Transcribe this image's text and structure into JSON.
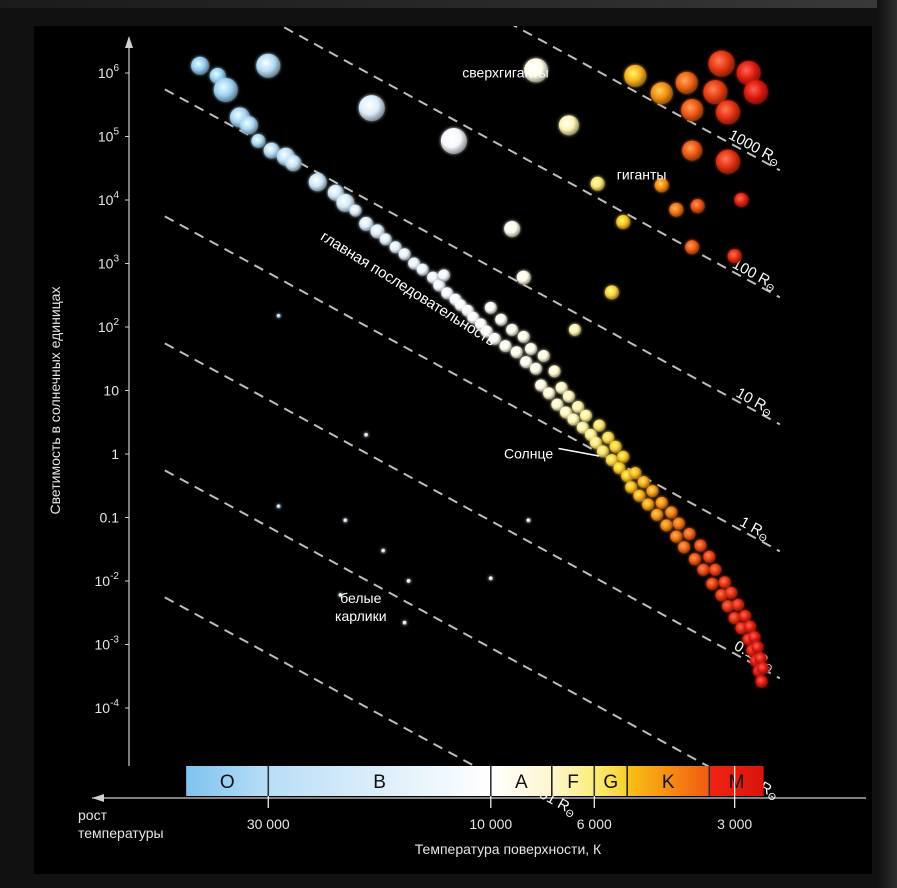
{
  "chart_data": {
    "type": "scatter",
    "title": "",
    "xlabel": "Температура поверхности, К",
    "ylabel": "Светимость в солнечных единицах",
    "x_scale": "log-reversed",
    "y_scale": "log",
    "xlim": [
      45000,
      2600
    ],
    "ylim": [
      5e-05,
      2000000
    ],
    "grid": false,
    "arrow_label": "рост\nтемпературы",
    "x_ticks": [
      {
        "value": 30000,
        "label": "30 000"
      },
      {
        "value": 10000,
        "label": "10 000"
      },
      {
        "value": 6000,
        "label": "6 000"
      },
      {
        "value": 3000,
        "label": "3 000"
      }
    ],
    "y_ticks": [
      {
        "value": 1000000,
        "base": "10",
        "exp": "6",
        "label": ""
      },
      {
        "value": 100000,
        "base": "10",
        "exp": "5",
        "label": ""
      },
      {
        "value": 10000,
        "base": "10",
        "exp": "4",
        "label": ""
      },
      {
        "value": 1000,
        "base": "10",
        "exp": "3",
        "label": ""
      },
      {
        "value": 100,
        "base": "10",
        "exp": "2",
        "label": ""
      },
      {
        "value": 10,
        "base": "",
        "exp": "",
        "label": "10"
      },
      {
        "value": 1,
        "base": "",
        "exp": "",
        "label": "1"
      },
      {
        "value": 0.1,
        "base": "",
        "exp": "",
        "label": "0.1"
      },
      {
        "value": 0.01,
        "base": "10",
        "exp": "-2",
        "label": ""
      },
      {
        "value": 0.001,
        "base": "10",
        "exp": "-3",
        "label": ""
      },
      {
        "value": 0.0001,
        "base": "10",
        "exp": "-4",
        "label": ""
      }
    ],
    "spectral_classes": [
      {
        "label": "O",
        "t_from": 45000,
        "t_to": 30000,
        "color_a": "#7ec3ee",
        "color_b": "#b9def6"
      },
      {
        "label": "B",
        "t_from": 30000,
        "t_to": 10000,
        "color_a": "#b9def6",
        "color_b": "#ffffff"
      },
      {
        "label": "A",
        "t_from": 10000,
        "t_to": 7400,
        "color_a": "#ffffff",
        "color_b": "#fdf6cf"
      },
      {
        "label": "F",
        "t_from": 7400,
        "t_to": 6000,
        "color_a": "#fdf6cf",
        "color_b": "#fbee7a"
      },
      {
        "label": "G",
        "t_from": 6000,
        "t_to": 5100,
        "color_a": "#fbee7a",
        "color_b": "#f6d02a"
      },
      {
        "label": "K",
        "t_from": 5100,
        "t_to": 3400,
        "color_a": "#fbc214",
        "color_b": "#f05a12"
      },
      {
        "label": "M",
        "t_from": 3400,
        "t_to": 2600,
        "color_a": "#f02412",
        "color_b": "#d8140c"
      }
    ],
    "radius_lines": [
      {
        "label": "0.001 RΘ",
        "radius": 0.001
      },
      {
        "label": "0.01 RΘ",
        "radius": 0.01
      },
      {
        "label": "0.1 RΘ",
        "radius": 0.1
      },
      {
        "label": "1 RΘ",
        "radius": 1
      },
      {
        "label": "10 RΘ",
        "radius": 10
      },
      {
        "label": "100 RΘ",
        "radius": 100
      },
      {
        "label": "1000 RΘ",
        "radius": 1000
      }
    ],
    "annotations": [
      {
        "text": "сверхгиганты",
        "t": 9300,
        "l": 850000
      },
      {
        "text": "гиганты",
        "t": 4750,
        "l": 21000
      },
      {
        "text": "главная последовательность",
        "t": 16000,
        "l": 300
      },
      {
        "text": "Солнце",
        "t": 8300,
        "l": 0.85
      },
      {
        "text": "белые\nкарлики",
        "t": 19000,
        "l": 0.0045
      }
    ],
    "sun": {
      "t": 5800,
      "l": 1
    },
    "series": [
      {
        "name": "главная последовательность",
        "points": [
          [
            42000,
            1300000,
            9
          ],
          [
            38500,
            900000,
            8
          ],
          [
            37000,
            540000,
            12
          ],
          [
            34500,
            200000,
            10
          ],
          [
            33000,
            150000,
            9
          ],
          [
            31500,
            85000,
            7
          ],
          [
            29500,
            60000,
            8
          ],
          [
            27500,
            48000,
            9
          ],
          [
            26500,
            38000,
            8
          ],
          [
            23500,
            19000,
            9
          ],
          [
            21500,
            13000,
            8
          ],
          [
            20500,
            9000,
            9
          ],
          [
            19500,
            6800,
            6
          ],
          [
            18500,
            4200,
            7
          ],
          [
            17500,
            3200,
            7
          ],
          [
            16800,
            2400,
            6
          ],
          [
            16000,
            1800,
            6
          ],
          [
            15300,
            1400,
            6
          ],
          [
            14600,
            1000,
            6
          ],
          [
            14000,
            800,
            6
          ],
          [
            13300,
            600,
            6
          ],
          [
            12900,
            450,
            6
          ],
          [
            12600,
            650,
            6
          ],
          [
            12400,
            340,
            6
          ],
          [
            11900,
            270,
            6
          ],
          [
            11600,
            220,
            6
          ],
          [
            11200,
            180,
            6
          ],
          [
            10900,
            140,
            6
          ],
          [
            10500,
            110,
            6
          ],
          [
            10200,
            85,
            6
          ],
          [
            10000,
            200,
            6
          ],
          [
            9800,
            65,
            6
          ],
          [
            9500,
            130,
            6
          ],
          [
            9300,
            50,
            6
          ],
          [
            9000,
            90,
            6
          ],
          [
            8800,
            40,
            6
          ],
          [
            8500,
            70,
            6
          ],
          [
            8400,
            28,
            6
          ],
          [
            8200,
            45,
            6
          ],
          [
            8000,
            22,
            6
          ],
          [
            7800,
            12,
            6
          ],
          [
            7700,
            35,
            6
          ],
          [
            7500,
            9,
            6
          ],
          [
            7300,
            20,
            6
          ],
          [
            7200,
            6,
            6
          ],
          [
            7050,
            11,
            6
          ],
          [
            6900,
            4.5,
            6
          ],
          [
            6800,
            8,
            6
          ],
          [
            6650,
            3.5,
            6
          ],
          [
            6500,
            5.5,
            6
          ],
          [
            6350,
            2.6,
            6
          ],
          [
            6250,
            4,
            6
          ],
          [
            6100,
            2,
            6
          ],
          [
            5950,
            1.5,
            6
          ],
          [
            5850,
            2.8,
            6
          ],
          [
            5750,
            1.1,
            6
          ],
          [
            5600,
            1.8,
            6
          ],
          [
            5500,
            0.8,
            6
          ],
          [
            5400,
            1.3,
            6
          ],
          [
            5300,
            0.6,
            6
          ],
          [
            5200,
            0.9,
            6
          ],
          [
            5100,
            0.45,
            6
          ],
          [
            5000,
            0.3,
            6
          ],
          [
            4900,
            0.5,
            6
          ],
          [
            4800,
            0.22,
            6
          ],
          [
            4700,
            0.36,
            6
          ],
          [
            4600,
            0.16,
            6
          ],
          [
            4500,
            0.26,
            6
          ],
          [
            4400,
            0.11,
            6
          ],
          [
            4300,
            0.17,
            6
          ],
          [
            4200,
            0.075,
            6
          ],
          [
            4100,
            0.12,
            6
          ],
          [
            4000,
            0.05,
            6
          ],
          [
            3950,
            0.08,
            6
          ],
          [
            3850,
            0.034,
            6
          ],
          [
            3750,
            0.055,
            6
          ],
          [
            3650,
            0.022,
            6
          ],
          [
            3550,
            0.036,
            6
          ],
          [
            3500,
            0.015,
            6
          ],
          [
            3400,
            0.024,
            6
          ],
          [
            3350,
            0.009,
            6
          ],
          [
            3300,
            0.015,
            6
          ],
          [
            3200,
            0.006,
            6
          ],
          [
            3150,
            0.0095,
            6
          ],
          [
            3100,
            0.004,
            6
          ],
          [
            3050,
            0.0065,
            6
          ],
          [
            3000,
            0.0026,
            6
          ],
          [
            2950,
            0.0042,
            6
          ],
          [
            2900,
            0.0018,
            6
          ],
          [
            2850,
            0.0028,
            6
          ],
          [
            2800,
            0.0012,
            6
          ],
          [
            2780,
            0.0019,
            6
          ],
          [
            2750,
            0.0008,
            6
          ],
          [
            2720,
            0.0013,
            6
          ],
          [
            2700,
            0.00055,
            6
          ],
          [
            2680,
            0.0009,
            6
          ],
          [
            2660,
            0.00038,
            6
          ],
          [
            2640,
            0.0006,
            6
          ],
          [
            2625,
            0.00026,
            6
          ],
          [
            2610,
            0.00042,
            6
          ]
        ]
      },
      {
        "name": "сверхгиганты",
        "points": [
          [
            30000,
            1300000,
            12
          ],
          [
            18000,
            280000,
            13
          ],
          [
            12000,
            85000,
            13
          ],
          [
            8000,
            1100000,
            12
          ],
          [
            6800,
            150000,
            10
          ],
          [
            4900,
            900000,
            11
          ],
          [
            3800,
            700000,
            11
          ],
          [
            3200,
            1400000,
            13
          ],
          [
            4300,
            480000,
            11
          ],
          [
            3300,
            500000,
            12
          ],
          [
            2800,
            1000000,
            12
          ],
          [
            2700,
            500000,
            12
          ],
          [
            3700,
            260000,
            11
          ],
          [
            3100,
            240000,
            12
          ],
          [
            3700,
            60000,
            10
          ],
          [
            3100,
            40000,
            12
          ]
        ]
      },
      {
        "name": "гиганты",
        "points": [
          [
            9000,
            3500,
            8
          ],
          [
            8500,
            600,
            7
          ],
          [
            5900,
            18000,
            7
          ],
          [
            5200,
            4500,
            7
          ],
          [
            6600,
            90,
            6
          ],
          [
            5500,
            350,
            7
          ],
          [
            4300,
            17000,
            7
          ],
          [
            4000,
            7000,
            7
          ],
          [
            3700,
            1800,
            7
          ],
          [
            3600,
            8000,
            7
          ],
          [
            2900,
            10000,
            7
          ],
          [
            3000,
            1300,
            7
          ]
        ]
      },
      {
        "name": "белые карлики",
        "points": [
          [
            28500,
            150,
            2
          ],
          [
            18500,
            2,
            2
          ],
          [
            28500,
            0.15,
            2
          ],
          [
            20500,
            0.09,
            2
          ],
          [
            17000,
            0.03,
            2
          ],
          [
            15000,
            0.01,
            2
          ],
          [
            10000,
            0.011,
            2
          ],
          [
            8300,
            0.09,
            2
          ],
          [
            21000,
            0.006,
            2
          ],
          [
            15300,
            0.0022,
            2
          ]
        ]
      }
    ]
  }
}
